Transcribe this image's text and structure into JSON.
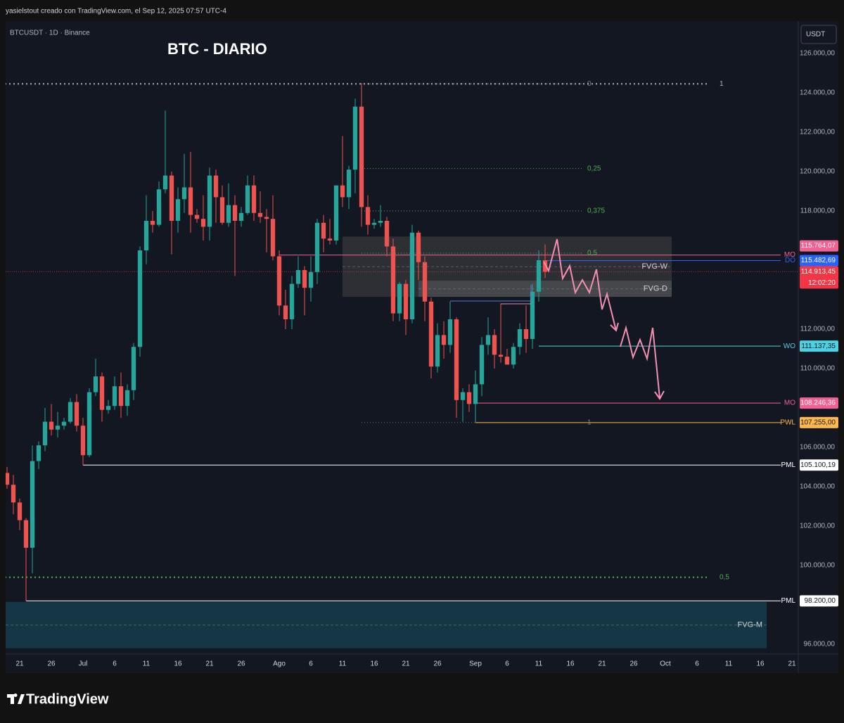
{
  "header": {
    "caption": "yasielstout creado con TradingView.com, el Sep 12, 2025 07:57 UTC-4"
  },
  "footer": {
    "brand": "TradingView"
  },
  "chart_data": {
    "type": "candlestick",
    "title": "BTC - DIARIO",
    "symbol": "BTCUSDT · 1D · Binance",
    "currency": "USDT",
    "up_color": "#26a69a",
    "down_color": "#ef5350",
    "grid": false,
    "x": [
      "2025-06-19",
      "2025-06-20",
      "2025-06-21",
      "2025-06-22",
      "2025-06-23",
      "2025-06-24",
      "2025-06-25",
      "2025-06-26",
      "2025-06-27",
      "2025-06-28",
      "2025-06-29",
      "2025-06-30",
      "2025-07-01",
      "2025-07-02",
      "2025-07-03",
      "2025-07-04",
      "2025-07-05",
      "2025-07-06",
      "2025-07-07",
      "2025-07-08",
      "2025-07-09",
      "2025-07-10",
      "2025-07-11",
      "2025-07-12",
      "2025-07-13",
      "2025-07-14",
      "2025-07-15",
      "2025-07-16",
      "2025-07-17",
      "2025-07-18",
      "2025-07-19",
      "2025-07-20",
      "2025-07-21",
      "2025-07-22",
      "2025-07-23",
      "2025-07-24",
      "2025-07-25",
      "2025-07-26",
      "2025-07-27",
      "2025-07-28",
      "2025-07-29",
      "2025-07-30",
      "2025-07-31",
      "2025-08-01",
      "2025-08-02",
      "2025-08-03",
      "2025-08-04",
      "2025-08-05",
      "2025-08-06",
      "2025-08-07",
      "2025-08-08",
      "2025-08-09",
      "2025-08-10",
      "2025-08-11",
      "2025-08-12",
      "2025-08-13",
      "2025-08-14",
      "2025-08-15",
      "2025-08-16",
      "2025-08-17",
      "2025-08-18",
      "2025-08-19",
      "2025-08-20",
      "2025-08-21",
      "2025-08-22",
      "2025-08-23",
      "2025-08-24",
      "2025-08-25",
      "2025-08-26",
      "2025-08-27",
      "2025-08-28",
      "2025-08-29",
      "2025-08-30",
      "2025-08-31",
      "2025-09-01",
      "2025-09-02",
      "2025-09-03",
      "2025-09-04",
      "2025-09-05",
      "2025-09-06",
      "2025-09-07",
      "2025-09-08",
      "2025-09-09",
      "2025-09-10",
      "2025-09-11",
      "2025-09-12"
    ],
    "open": [
      104700,
      104100,
      103200,
      102300,
      100900,
      105300,
      106100,
      107300,
      106900,
      107100,
      107300,
      108300,
      107100,
      105600,
      108800,
      109600,
      107900,
      108100,
      109100,
      108100,
      108900,
      111100,
      116000,
      117500,
      117300,
      119100,
      119800,
      117500,
      118600,
      119200,
      117800,
      117600,
      117200,
      119800,
      118700,
      117400,
      118300,
      117500,
      117900,
      119300,
      117900,
      117700,
      117600,
      115700,
      113200,
      112500,
      114300,
      115000,
      114100,
      114900,
      117400,
      116600,
      116500,
      119300,
      118700,
      120100,
      123300,
      118200,
      117300,
      117400,
      117500,
      116200,
      112800,
      114300,
      112500,
      116900,
      115400,
      113400,
      110100,
      111700,
      111200,
      112500,
      108400,
      108800,
      108200,
      109200,
      111200,
      111700,
      110700,
      110600,
      110200,
      111100,
      112000,
      111500,
      113900,
      115500
    ],
    "high": [
      105000,
      104600,
      103400,
      102400,
      106100,
      106300,
      108000,
      108200,
      107800,
      107500,
      108500,
      108700,
      107500,
      109000,
      110500,
      109800,
      108400,
      109600,
      109800,
      109200,
      111300,
      116200,
      118800,
      118000,
      119500,
      123100,
      120000,
      119200,
      120900,
      121000,
      118100,
      118800,
      120200,
      120100,
      119300,
      119400,
      118800,
      118200,
      119800,
      119800,
      119000,
      118100,
      118800,
      116000,
      114000,
      114700,
      115700,
      115200,
      115700,
      117600,
      117800,
      117600,
      119300,
      121800,
      120300,
      123700,
      124500,
      118800,
      117600,
      118300,
      117700,
      116600,
      114400,
      114500,
      117300,
      117000,
      115700,
      113600,
      112300,
      112400,
      113400,
      112600,
      109000,
      109200,
      109900,
      111600,
      112600,
      112000,
      113300,
      111000,
      111300,
      112300,
      113200,
      114300,
      116000,
      116300
    ],
    "low": [
      103900,
      102600,
      101800,
      98200,
      99600,
      104900,
      105800,
      106600,
      106500,
      106900,
      107200,
      106800,
      105100,
      105500,
      108600,
      107300,
      107700,
      107900,
      107500,
      107600,
      108400,
      110600,
      115300,
      116900,
      117200,
      118900,
      115800,
      116900,
      117900,
      116900,
      117400,
      116500,
      116500,
      117400,
      117300,
      117200,
      114700,
      117200,
      117800,
      117500,
      117400,
      115900,
      115500,
      112700,
      112000,
      112000,
      114100,
      112700,
      113400,
      114300,
      115900,
      116300,
      116300,
      118200,
      118100,
      118900,
      117200,
      116800,
      117100,
      117200,
      115700,
      112400,
      112400,
      111700,
      112300,
      114500,
      112400,
      109500,
      109800,
      110500,
      110800,
      107500,
      107300,
      107800,
      107255,
      108600,
      110700,
      110000,
      110300,
      110200,
      110000,
      110700,
      110800,
      111000,
      113400,
      114600
    ],
    "close": [
      104100,
      103200,
      102300,
      100900,
      105300,
      106100,
      107300,
      106900,
      107100,
      107300,
      108300,
      107100,
      105600,
      108800,
      109600,
      107900,
      108100,
      109100,
      108100,
      108900,
      111100,
      116000,
      117500,
      117300,
      119100,
      119800,
      117500,
      118600,
      119200,
      117800,
      117600,
      117200,
      119800,
      118700,
      117400,
      118300,
      117500,
      117900,
      119300,
      117900,
      117700,
      117600,
      115700,
      113200,
      112500,
      114300,
      115000,
      114100,
      114900,
      117400,
      116600,
      116500,
      119300,
      118700,
      120100,
      123300,
      118200,
      117300,
      117400,
      117500,
      116200,
      112800,
      114300,
      112500,
      116900,
      115400,
      113400,
      110100,
      111700,
      111200,
      112500,
      108400,
      108800,
      108200,
      109200,
      111200,
      111700,
      110700,
      110600,
      110200,
      111100,
      112000,
      111500,
      113900,
      115500,
      114913.45
    ],
    "xlim": [
      "2025-06-18",
      "2025-10-22"
    ],
    "ylim": [
      95500,
      127643
    ],
    "xticks": [
      {
        "value": "2025-06-21",
        "label": "21"
      },
      {
        "value": "2025-06-26",
        "label": "26"
      },
      {
        "value": "2025-07-01",
        "label": "Jul"
      },
      {
        "value": "2025-07-06",
        "label": "6"
      },
      {
        "value": "2025-07-11",
        "label": "11"
      },
      {
        "value": "2025-07-16",
        "label": "16"
      },
      {
        "value": "2025-07-21",
        "label": "21"
      },
      {
        "value": "2025-07-26",
        "label": "26"
      },
      {
        "value": "2025-08-01",
        "label": "Ago"
      },
      {
        "value": "2025-08-06",
        "label": "6"
      },
      {
        "value": "2025-08-11",
        "label": "11"
      },
      {
        "value": "2025-08-16",
        "label": "16"
      },
      {
        "value": "2025-08-21",
        "label": "21"
      },
      {
        "value": "2025-08-26",
        "label": "26"
      },
      {
        "value": "2025-09-01",
        "label": "Sep"
      },
      {
        "value": "2025-09-06",
        "label": "6"
      },
      {
        "value": "2025-09-11",
        "label": "11"
      },
      {
        "value": "2025-09-16",
        "label": "16"
      },
      {
        "value": "2025-09-21",
        "label": "21"
      },
      {
        "value": "2025-09-26",
        "label": "26"
      },
      {
        "value": "2025-10-01",
        "label": "Oct"
      },
      {
        "value": "2025-10-06",
        "label": "6"
      },
      {
        "value": "2025-10-11",
        "label": "11"
      },
      {
        "value": "2025-10-16",
        "label": "16"
      },
      {
        "value": "2025-10-21",
        "label": "21"
      }
    ],
    "yticks": [
      {
        "value": 126000,
        "label": "126.000,00"
      },
      {
        "value": 124000,
        "label": "124.000,00"
      },
      {
        "value": 122000,
        "label": "122.000,00"
      },
      {
        "value": 120000,
        "label": "120.000,00"
      },
      {
        "value": 118000,
        "label": "118.000,00"
      },
      {
        "value": 112000,
        "label": "112.000,00"
      },
      {
        "value": 110000,
        "label": "110.000,00"
      },
      {
        "value": 106000,
        "label": "106.000,00"
      },
      {
        "value": 104000,
        "label": "104.000,00"
      },
      {
        "value": 102000,
        "label": "102.000,00"
      },
      {
        "value": 100000,
        "label": "100.000,00"
      },
      {
        "value": 96000,
        "label": "96.000,00"
      }
    ],
    "levels": [
      {
        "name": "MO",
        "value": 115764.07,
        "label": "115.764,07",
        "color": "#f06292",
        "text_color": "#ffffff",
        "x0": "2025-08-01"
      },
      {
        "name": "DO",
        "value": 115482.69,
        "label": "115.482,69",
        "color": "#2962ff",
        "text_color": "#ffffff",
        "x0": "2025-09-12"
      },
      {
        "name": "WO",
        "value": 111137.35,
        "label": "111.137,35",
        "color": "#4dd0e1",
        "text_color": "#131722",
        "x0": "2025-09-11"
      },
      {
        "name": "MO",
        "value": 108246.36,
        "label": "108.246,36",
        "color": "#f06292",
        "text_color": "#ffffff",
        "x0": "2025-09-01"
      },
      {
        "name": "PWL",
        "value": 107255,
        "label": "107.255,00",
        "color": "#ffb74d",
        "text_color": "#131722",
        "x0": "2025-09-01"
      },
      {
        "name": "PML",
        "value": 105100.19,
        "label": "105.100,19",
        "color": "#ffffff",
        "text_color": "#131722",
        "x0": "2025-07-01"
      },
      {
        "name": "PML",
        "value": 98200,
        "label": "98.200,00",
        "color": "#ffffff",
        "text_color": "#131722",
        "x0": "2025-06-22"
      }
    ],
    "last_price": {
      "value": 114913.45,
      "label": "114.913,45",
      "countdown": "12:02:20",
      "color": "#f23645"
    },
    "fibs": [
      {
        "p0": 124457,
        "p1": 107255,
        "x0": "2025-08-14",
        "x1": "2025-09-18",
        "levels": [
          {
            "value": 0,
            "label": "0",
            "color": "#787b86"
          },
          {
            "value": 0.25,
            "label": "0,25",
            "color": "#4caf50"
          },
          {
            "value": 0.375,
            "label": "0,375",
            "color": "#4caf50"
          },
          {
            "value": 0.5,
            "label": "0,5",
            "color": "#4caf50"
          },
          {
            "value": 1,
            "label": "1",
            "color": "#787b86"
          }
        ]
      },
      {
        "p0": 74343,
        "p1": 124457,
        "x0": "2025-06-18",
        "x1": "2025-10-08",
        "levels": [
          {
            "value": 1,
            "label": "1",
            "color": "#b2b5be"
          },
          {
            "value": 0.5,
            "label": "0,5",
            "color": "#4caf50"
          }
        ]
      }
    ],
    "zones": [
      {
        "name": "FVG-W",
        "top": 116700,
        "bottom": 113640,
        "x0": "2025-08-11",
        "x1": "2025-10-02",
        "color": "rgba(120,112,100,0.28)"
      },
      {
        "name": "FVG-D",
        "top": 114460,
        "bottom": 113640,
        "x0": "2025-08-23",
        "x1": "2025-10-02",
        "color": "rgba(160,160,160,0.22)"
      },
      {
        "name": "FVG-M",
        "top": 98150,
        "bottom": 95800,
        "x0": "2025-06-18",
        "x1": "2025-10-17",
        "color": "rgba(22,86,104,0.5)"
      }
    ]
  }
}
